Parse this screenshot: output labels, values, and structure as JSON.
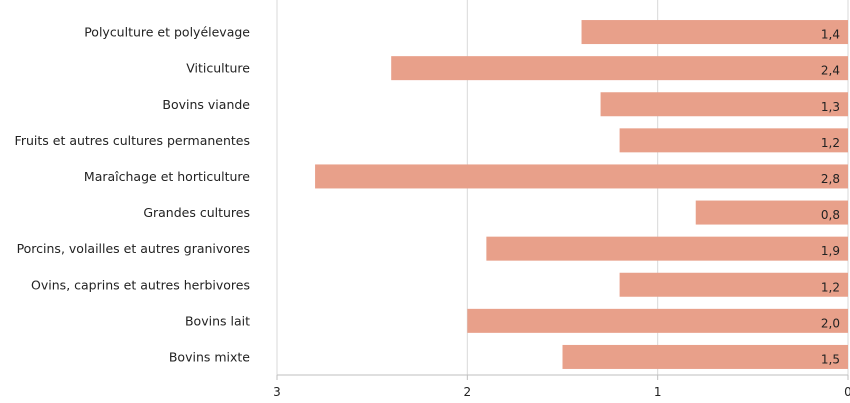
{
  "chart_data": {
    "type": "bar",
    "orientation": "horizontal",
    "x_reversed": true,
    "categories": [
      "Polyculture et polyélevage",
      "Viticulture",
      "Bovins viande",
      "Fruits et autres cultures permanentes",
      "Maraîchage et horticulture",
      "Grandes cultures",
      "Porcins, volailles et autres granivores",
      "Ovins, caprins et autres herbivores",
      "Bovins lait",
      "Bovins mixte"
    ],
    "values": [
      1.4,
      2.4,
      1.3,
      1.2,
      2.8,
      0.8,
      1.9,
      1.2,
      2.0,
      1.5
    ],
    "value_labels": [
      "1,4",
      "2,4",
      "1,3",
      "1,2",
      "2,8",
      "0,8",
      "1,9",
      "1,2",
      "2,0",
      "1,5"
    ],
    "xlim": [
      0,
      3
    ],
    "xticks": [
      3,
      2,
      1,
      0
    ],
    "grid": true,
    "bar_color": "#e8a08a",
    "title": "",
    "xlabel": "",
    "ylabel": ""
  }
}
